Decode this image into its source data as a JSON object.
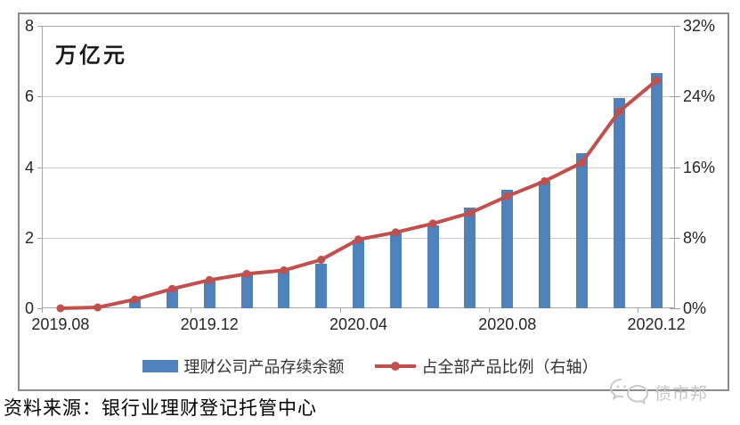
{
  "chart": {
    "unit_label": "万亿元",
    "legend": [
      {
        "label": "理财公司产品存续余额"
      },
      {
        "label": "占全部产品比例（右轴）"
      }
    ]
  },
  "chart_data": {
    "type": "bar",
    "subtype": "bar+line combo, dual axis",
    "categories": [
      "2019.08",
      "2019.09",
      "2019.10",
      "2019.11",
      "2019.12",
      "2020.01",
      "2020.02",
      "2020.03",
      "2020.04",
      "2020.05",
      "2020.06",
      "2020.07",
      "2020.08",
      "2020.09",
      "2020.10",
      "2020.11",
      "2020.12"
    ],
    "series": [
      {
        "name": "理财公司产品存续余额",
        "type": "bar",
        "axis": "left",
        "unit": "万亿元",
        "color": "#4F81BD",
        "values": [
          0,
          0,
          0.25,
          0.55,
          0.8,
          0.95,
          1.05,
          1.25,
          1.95,
          2.15,
          2.35,
          2.85,
          3.35,
          3.6,
          4.4,
          5.95,
          6.67
        ]
      },
      {
        "name": "占全部产品比例（右轴）",
        "type": "line",
        "axis": "right",
        "unit": "%",
        "color": "#C0504D",
        "values": [
          0,
          0.1,
          1.0,
          2.2,
          3.2,
          3.9,
          4.3,
          5.5,
          7.8,
          8.6,
          9.6,
          10.8,
          12.7,
          14.4,
          16.5,
          22.3,
          25.8
        ]
      }
    ],
    "left_axis": {
      "title": "万亿元",
      "min": 0,
      "max": 8,
      "tick_values": [
        8,
        6,
        4,
        2,
        0
      ],
      "tick_labels": [
        "8",
        "6",
        "4",
        "2",
        "0"
      ],
      "grid_values": [
        2,
        4,
        6
      ]
    },
    "right_axis": {
      "min": 0,
      "max": 32,
      "tick_values": [
        32,
        24,
        16,
        8,
        0
      ],
      "tick_labels": [
        "32%",
        "24%",
        "16%",
        "8%",
        "0%"
      ]
    },
    "x_axis": {
      "labeled_indices": [
        0,
        4,
        8,
        12,
        16
      ],
      "tick_labels": [
        "2019.08",
        "2019.12",
        "2020.04",
        "2020.08",
        "2020.12"
      ]
    },
    "grid": true,
    "legend_position": "bottom"
  },
  "footer": {
    "source": "资料来源：银行业理财登记托管中心"
  },
  "watermark": {
    "text": "债市邦"
  }
}
